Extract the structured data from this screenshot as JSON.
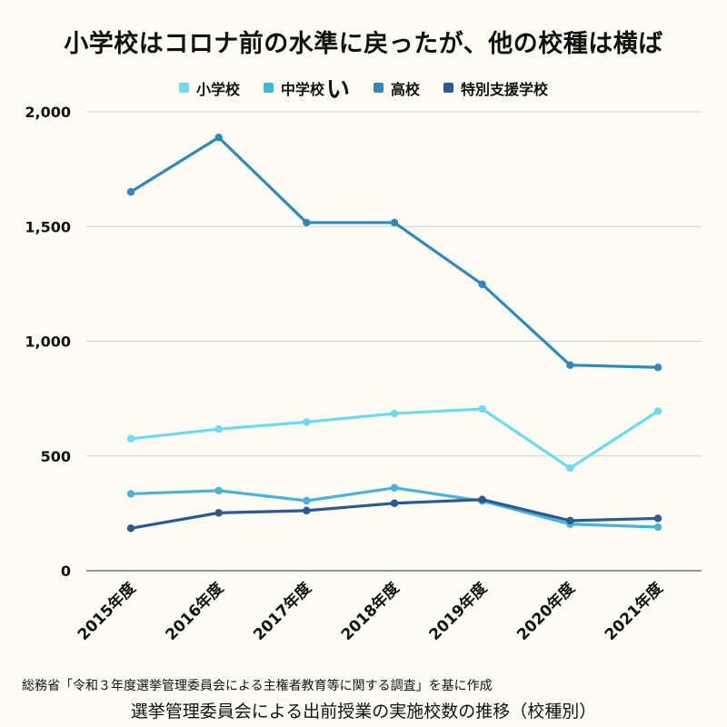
{
  "chart_data": {
    "type": "line",
    "title": "小学校はコロナ前の水準に戻ったが、他の校種は横ば",
    "subtitle": "選挙管理委員会による出前授業の実施校数の推移（校種別）",
    "source": "総務省「令和３年度選挙管理委員会による主権者教育等に関する調査」を基に作成",
    "legend_stray_char": "い",
    "legend_position": "top-center",
    "grid": true,
    "ylim": [
      0,
      2000
    ],
    "yticks": [
      0,
      500,
      1000,
      1500,
      2000
    ],
    "ytick_labels": [
      "0",
      "500",
      "1,000",
      "1,500",
      "2,000"
    ],
    "categories": [
      "2015年度",
      "2016年度",
      "2017年度",
      "2018年度",
      "2019年度",
      "2020年度",
      "2021年度"
    ],
    "series": [
      {
        "name": "小学校",
        "color": "#6ddbec",
        "values": [
          575,
          617,
          648,
          685,
          705,
          447,
          695
        ]
      },
      {
        "name": "中学校",
        "color": "#4ab2d6",
        "values": [
          335,
          349,
          305,
          361,
          304,
          203,
          190
        ]
      },
      {
        "name": "高校",
        "color": "#2f89ba",
        "values": [
          1651,
          1888,
          1517,
          1517,
          1248,
          896,
          886
        ]
      },
      {
        "name": "特別支援学校",
        "color": "#2d5891",
        "values": [
          185,
          252,
          262,
          294,
          310,
          218,
          228
        ]
      }
    ]
  }
}
